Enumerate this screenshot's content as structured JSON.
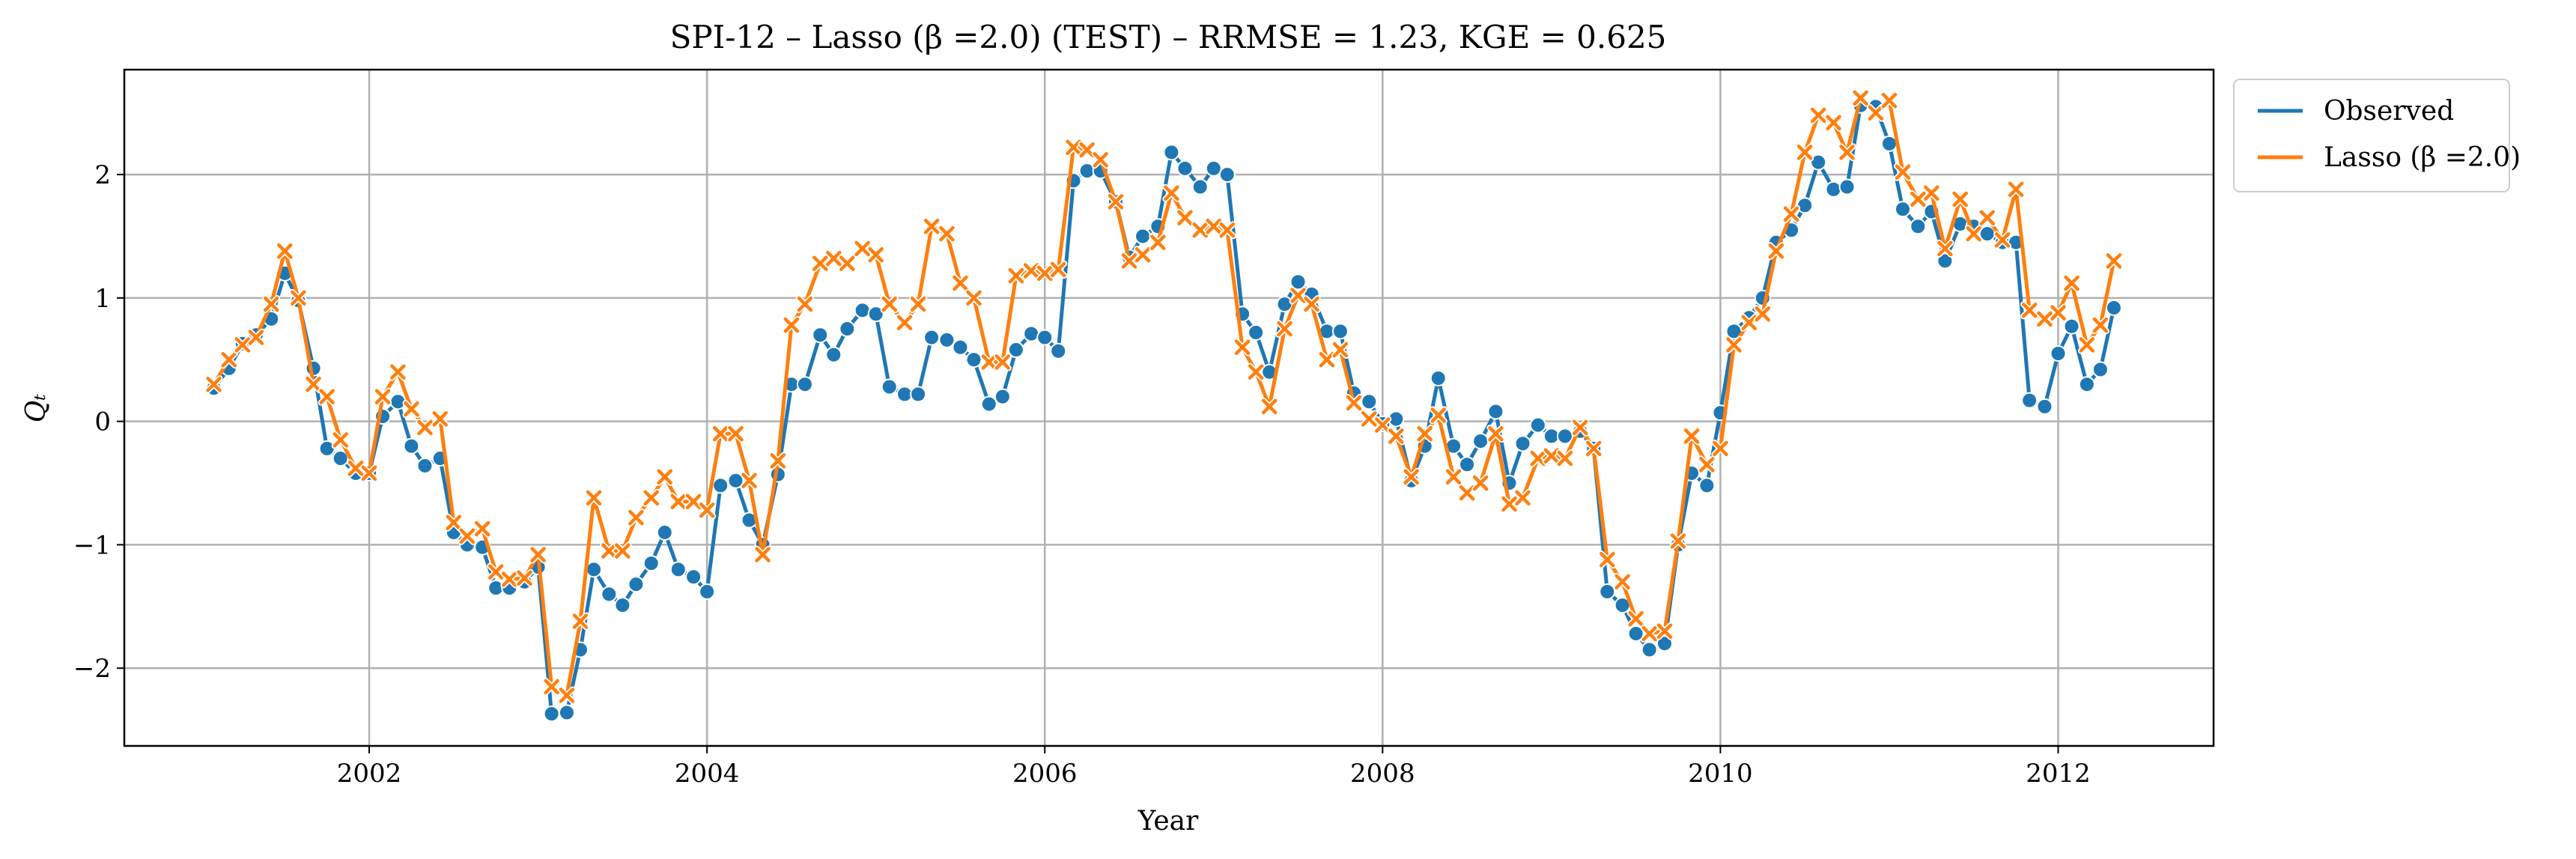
{
  "chart_data": {
    "type": "line",
    "title": "SPI-12 – Lasso (β =2.0) (TEST) – RRMSE = 1.23, KGE = 0.625",
    "xlabel": "Year",
    "ylabel": "Qₜ",
    "xlim": [
      2000.55,
      2012.92
    ],
    "ylim": [
      -2.63,
      2.85
    ],
    "grid": true,
    "legend_position": "outside-top-right",
    "x_ticks": [
      2002,
      2004,
      2006,
      2008,
      2010,
      2012
    ],
    "x_tick_labels": [
      "2002",
      "2004",
      "2006",
      "2008",
      "2010",
      "2012"
    ],
    "y_ticks": [
      -2,
      -1,
      0,
      1,
      2
    ],
    "y_tick_labels": [
      "−2",
      "−1",
      "0",
      "1",
      "2"
    ],
    "colors": {
      "observed": "#1f77b4",
      "lasso": "#ff7f0e",
      "grid": "#b0b0b0"
    },
    "series": [
      {
        "name": "Observed",
        "marker": "circle",
        "points": [
          [
            2001.08,
            0.27
          ],
          [
            2001.17,
            0.43
          ],
          [
            2001.25,
            0.63
          ],
          [
            2001.33,
            0.7
          ],
          [
            2001.42,
            0.83
          ],
          [
            2001.5,
            1.2
          ],
          [
            2001.58,
            0.98
          ],
          [
            2001.67,
            0.43
          ],
          [
            2001.75,
            -0.22
          ],
          [
            2001.83,
            -0.3
          ],
          [
            2001.92,
            -0.42
          ],
          [
            2002.0,
            -0.42
          ],
          [
            2002.08,
            0.04
          ],
          [
            2002.17,
            0.16
          ],
          [
            2002.25,
            -0.2
          ],
          [
            2002.33,
            -0.36
          ],
          [
            2002.42,
            -0.3
          ],
          [
            2002.5,
            -0.9
          ],
          [
            2002.58,
            -1.0
          ],
          [
            2002.67,
            -1.02
          ],
          [
            2002.75,
            -1.35
          ],
          [
            2002.83,
            -1.35
          ],
          [
            2002.92,
            -1.3
          ],
          [
            2003.0,
            -1.18
          ],
          [
            2003.08,
            -2.37
          ],
          [
            2003.17,
            -2.36
          ],
          [
            2003.25,
            -1.85
          ],
          [
            2003.33,
            -1.2
          ],
          [
            2003.42,
            -1.4
          ],
          [
            2003.5,
            -1.49
          ],
          [
            2003.58,
            -1.32
          ],
          [
            2003.67,
            -1.15
          ],
          [
            2003.75,
            -0.9
          ],
          [
            2003.83,
            -1.2
          ],
          [
            2003.92,
            -1.26
          ],
          [
            2004.0,
            -1.38
          ],
          [
            2004.08,
            -0.52
          ],
          [
            2004.17,
            -0.48
          ],
          [
            2004.25,
            -0.8
          ],
          [
            2004.33,
            -1.0
          ],
          [
            2004.42,
            -0.43
          ],
          [
            2004.5,
            0.3
          ],
          [
            2004.58,
            0.3
          ],
          [
            2004.67,
            0.7
          ],
          [
            2004.75,
            0.54
          ],
          [
            2004.83,
            0.75
          ],
          [
            2004.92,
            0.9
          ],
          [
            2005.0,
            0.87
          ],
          [
            2005.08,
            0.28
          ],
          [
            2005.17,
            0.22
          ],
          [
            2005.25,
            0.22
          ],
          [
            2005.33,
            0.68
          ],
          [
            2005.42,
            0.66
          ],
          [
            2005.5,
            0.6
          ],
          [
            2005.58,
            0.5
          ],
          [
            2005.67,
            0.14
          ],
          [
            2005.75,
            0.2
          ],
          [
            2005.83,
            0.58
          ],
          [
            2005.92,
            0.71
          ],
          [
            2006.0,
            0.68
          ],
          [
            2006.08,
            0.57
          ],
          [
            2006.17,
            1.95
          ],
          [
            2006.25,
            2.03
          ],
          [
            2006.33,
            2.03
          ],
          [
            2006.42,
            1.78
          ],
          [
            2006.5,
            1.33
          ],
          [
            2006.58,
            1.5
          ],
          [
            2006.67,
            1.58
          ],
          [
            2006.75,
            2.18
          ],
          [
            2006.83,
            2.05
          ],
          [
            2006.92,
            1.9
          ],
          [
            2007.0,
            2.05
          ],
          [
            2007.08,
            2.0
          ],
          [
            2007.17,
            0.87
          ],
          [
            2007.25,
            0.72
          ],
          [
            2007.33,
            0.4
          ],
          [
            2007.42,
            0.95
          ],
          [
            2007.5,
            1.13
          ],
          [
            2007.58,
            1.03
          ],
          [
            2007.67,
            0.73
          ],
          [
            2007.75,
            0.73
          ],
          [
            2007.83,
            0.23
          ],
          [
            2007.92,
            0.16
          ],
          [
            2008.0,
            -0.02
          ],
          [
            2008.08,
            0.02
          ],
          [
            2008.17,
            -0.48
          ],
          [
            2008.25,
            -0.2
          ],
          [
            2008.33,
            0.35
          ],
          [
            2008.42,
            -0.2
          ],
          [
            2008.5,
            -0.35
          ],
          [
            2008.58,
            -0.16
          ],
          [
            2008.67,
            0.08
          ],
          [
            2008.75,
            -0.5
          ],
          [
            2008.83,
            -0.18
          ],
          [
            2008.92,
            -0.03
          ],
          [
            2009.0,
            -0.12
          ],
          [
            2009.08,
            -0.12
          ],
          [
            2009.17,
            -0.08
          ],
          [
            2009.25,
            -0.22
          ],
          [
            2009.33,
            -1.38
          ],
          [
            2009.42,
            -1.49
          ],
          [
            2009.5,
            -1.72
          ],
          [
            2009.58,
            -1.85
          ],
          [
            2009.67,
            -1.8
          ],
          [
            2009.75,
            -1.0
          ],
          [
            2009.83,
            -0.42
          ],
          [
            2009.92,
            -0.52
          ],
          [
            2010.0,
            0.07
          ],
          [
            2010.08,
            0.73
          ],
          [
            2010.17,
            0.84
          ],
          [
            2010.25,
            1.0
          ],
          [
            2010.33,
            1.45
          ],
          [
            2010.42,
            1.55
          ],
          [
            2010.5,
            1.75
          ],
          [
            2010.58,
            2.1
          ],
          [
            2010.67,
            1.88
          ],
          [
            2010.75,
            1.9
          ],
          [
            2010.83,
            2.56
          ],
          [
            2010.92,
            2.55
          ],
          [
            2011.0,
            2.25
          ],
          [
            2011.08,
            1.72
          ],
          [
            2011.17,
            1.58
          ],
          [
            2011.25,
            1.7
          ],
          [
            2011.33,
            1.3
          ],
          [
            2011.42,
            1.6
          ],
          [
            2011.5,
            1.58
          ],
          [
            2011.58,
            1.52
          ],
          [
            2011.67,
            1.45
          ],
          [
            2011.75,
            1.45
          ],
          [
            2011.83,
            0.17
          ],
          [
            2011.92,
            0.12
          ],
          [
            2012.0,
            0.55
          ],
          [
            2012.08,
            0.77
          ],
          [
            2012.17,
            0.3
          ],
          [
            2012.25,
            0.42
          ],
          [
            2012.33,
            0.92
          ]
        ]
      },
      {
        "name": "Lasso (β =2.0)",
        "marker": "x",
        "points": [
          [
            2001.08,
            0.3
          ],
          [
            2001.17,
            0.5
          ],
          [
            2001.25,
            0.62
          ],
          [
            2001.33,
            0.68
          ],
          [
            2001.42,
            0.95
          ],
          [
            2001.5,
            1.38
          ],
          [
            2001.58,
            1.0
          ],
          [
            2001.67,
            0.3
          ],
          [
            2001.75,
            0.2
          ],
          [
            2001.83,
            -0.15
          ],
          [
            2001.92,
            -0.38
          ],
          [
            2002.0,
            -0.42
          ],
          [
            2002.08,
            0.2
          ],
          [
            2002.17,
            0.4
          ],
          [
            2002.25,
            0.1
          ],
          [
            2002.33,
            -0.05
          ],
          [
            2002.42,
            0.02
          ],
          [
            2002.5,
            -0.82
          ],
          [
            2002.58,
            -0.93
          ],
          [
            2002.67,
            -0.87
          ],
          [
            2002.75,
            -1.22
          ],
          [
            2002.83,
            -1.28
          ],
          [
            2002.92,
            -1.27
          ],
          [
            2003.0,
            -1.08
          ],
          [
            2003.08,
            -2.15
          ],
          [
            2003.17,
            -2.22
          ],
          [
            2003.25,
            -1.62
          ],
          [
            2003.33,
            -0.62
          ],
          [
            2003.42,
            -1.05
          ],
          [
            2003.5,
            -1.05
          ],
          [
            2003.58,
            -0.78
          ],
          [
            2003.67,
            -0.62
          ],
          [
            2003.75,
            -0.45
          ],
          [
            2003.83,
            -0.65
          ],
          [
            2003.92,
            -0.65
          ],
          [
            2004.0,
            -0.72
          ],
          [
            2004.08,
            -0.1
          ],
          [
            2004.17,
            -0.1
          ],
          [
            2004.25,
            -0.48
          ],
          [
            2004.33,
            -1.08
          ],
          [
            2004.42,
            -0.32
          ],
          [
            2004.5,
            0.78
          ],
          [
            2004.58,
            0.95
          ],
          [
            2004.67,
            1.28
          ],
          [
            2004.75,
            1.32
          ],
          [
            2004.83,
            1.28
          ],
          [
            2004.92,
            1.4
          ],
          [
            2005.0,
            1.35
          ],
          [
            2005.08,
            0.95
          ],
          [
            2005.17,
            0.8
          ],
          [
            2005.25,
            0.95
          ],
          [
            2005.33,
            1.58
          ],
          [
            2005.42,
            1.52
          ],
          [
            2005.5,
            1.12
          ],
          [
            2005.58,
            1.0
          ],
          [
            2005.67,
            0.48
          ],
          [
            2005.75,
            0.48
          ],
          [
            2005.83,
            1.18
          ],
          [
            2005.92,
            1.22
          ],
          [
            2006.0,
            1.2
          ],
          [
            2006.08,
            1.23
          ],
          [
            2006.17,
            2.22
          ],
          [
            2006.25,
            2.2
          ],
          [
            2006.33,
            2.12
          ],
          [
            2006.42,
            1.78
          ],
          [
            2006.5,
            1.3
          ],
          [
            2006.58,
            1.35
          ],
          [
            2006.67,
            1.45
          ],
          [
            2006.75,
            1.85
          ],
          [
            2006.83,
            1.65
          ],
          [
            2006.92,
            1.55
          ],
          [
            2007.0,
            1.58
          ],
          [
            2007.08,
            1.55
          ],
          [
            2007.17,
            0.6
          ],
          [
            2007.25,
            0.4
          ],
          [
            2007.33,
            0.12
          ],
          [
            2007.42,
            0.75
          ],
          [
            2007.5,
            1.02
          ],
          [
            2007.58,
            0.95
          ],
          [
            2007.67,
            0.5
          ],
          [
            2007.75,
            0.58
          ],
          [
            2007.83,
            0.15
          ],
          [
            2007.92,
            0.02
          ],
          [
            2008.0,
            -0.03
          ],
          [
            2008.08,
            -0.12
          ],
          [
            2008.17,
            -0.45
          ],
          [
            2008.25,
            -0.1
          ],
          [
            2008.33,
            0.05
          ],
          [
            2008.42,
            -0.45
          ],
          [
            2008.5,
            -0.58
          ],
          [
            2008.58,
            -0.5
          ],
          [
            2008.67,
            -0.1
          ],
          [
            2008.75,
            -0.67
          ],
          [
            2008.83,
            -0.62
          ],
          [
            2008.92,
            -0.3
          ],
          [
            2009.0,
            -0.28
          ],
          [
            2009.08,
            -0.3
          ],
          [
            2009.17,
            -0.05
          ],
          [
            2009.25,
            -0.22
          ],
          [
            2009.33,
            -1.12
          ],
          [
            2009.42,
            -1.3
          ],
          [
            2009.5,
            -1.6
          ],
          [
            2009.58,
            -1.72
          ],
          [
            2009.67,
            -1.7
          ],
          [
            2009.75,
            -0.97
          ],
          [
            2009.83,
            -0.12
          ],
          [
            2009.92,
            -0.35
          ],
          [
            2010.0,
            -0.22
          ],
          [
            2010.08,
            0.62
          ],
          [
            2010.17,
            0.8
          ],
          [
            2010.25,
            0.87
          ],
          [
            2010.33,
            1.38
          ],
          [
            2010.42,
            1.68
          ],
          [
            2010.5,
            2.18
          ],
          [
            2010.58,
            2.48
          ],
          [
            2010.67,
            2.42
          ],
          [
            2010.75,
            2.18
          ],
          [
            2010.83,
            2.62
          ],
          [
            2010.92,
            2.5
          ],
          [
            2011.0,
            2.6
          ],
          [
            2011.08,
            2.02
          ],
          [
            2011.17,
            1.8
          ],
          [
            2011.25,
            1.85
          ],
          [
            2011.33,
            1.4
          ],
          [
            2011.42,
            1.8
          ],
          [
            2011.5,
            1.52
          ],
          [
            2011.58,
            1.65
          ],
          [
            2011.67,
            1.47
          ],
          [
            2011.75,
            1.88
          ],
          [
            2011.83,
            0.9
          ],
          [
            2011.92,
            0.83
          ],
          [
            2012.0,
            0.88
          ],
          [
            2012.08,
            1.12
          ],
          [
            2012.17,
            0.62
          ],
          [
            2012.25,
            0.78
          ],
          [
            2012.33,
            1.3
          ]
        ]
      }
    ]
  }
}
